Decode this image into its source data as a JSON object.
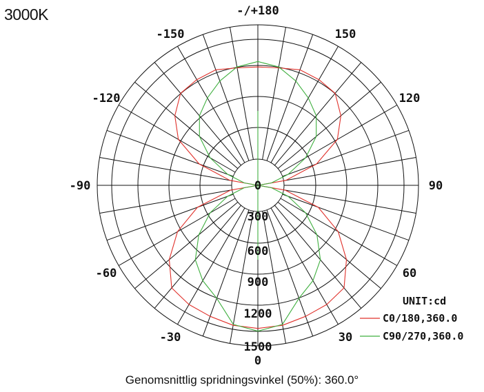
{
  "title": "3000K",
  "footer_text": "Genomsnittlig spridningsvinkel (50%): 360.0°",
  "chart_data": {
    "type": "polar-line",
    "unit_label": "UNIT:cd",
    "angle_labels": [
      {
        "angle": 180,
        "text": "-/+180"
      },
      {
        "angle": -150,
        "text": "-150"
      },
      {
        "angle": 150,
        "text": "150"
      },
      {
        "angle": -120,
        "text": "-120"
      },
      {
        "angle": 120,
        "text": "120"
      },
      {
        "angle": -90,
        "text": "-90"
      },
      {
        "angle": 90,
        "text": "90"
      },
      {
        "angle": -60,
        "text": "-60"
      },
      {
        "angle": 60,
        "text": "60"
      },
      {
        "angle": -30,
        "text": "-30"
      },
      {
        "angle": 30,
        "text": "30"
      },
      {
        "angle": 0,
        "text": "0"
      }
    ],
    "radial_ticks": [
      0,
      300,
      600,
      900,
      1200,
      1500
    ],
    "rmax": 1750,
    "series": [
      {
        "name": "C0/180,360.0",
        "color": "#e0302a",
        "angles": [
          0,
          10,
          20,
          30,
          40,
          50,
          60,
          70,
          80,
          90,
          100,
          110,
          120,
          130,
          140,
          150,
          160,
          170,
          180
        ],
        "values": [
          1560,
          1550,
          1520,
          1500,
          1460,
          1260,
          1010,
          700,
          300,
          0,
          310,
          680,
          1000,
          1180,
          1310,
          1330,
          1340,
          1300,
          1290
        ]
      },
      {
        "name": "C90/270,360.0",
        "color": "#3faf3f",
        "angles": [
          0,
          10,
          20,
          30,
          40,
          50,
          60,
          70,
          80,
          90,
          100,
          110,
          120,
          130,
          140,
          150,
          160,
          170,
          180
        ],
        "values": [
          1590,
          1540,
          1310,
          1200,
          1060,
          840,
          600,
          350,
          150,
          0,
          150,
          350,
          600,
          830,
          990,
          1100,
          1210,
          1310,
          1350
        ]
      }
    ]
  }
}
